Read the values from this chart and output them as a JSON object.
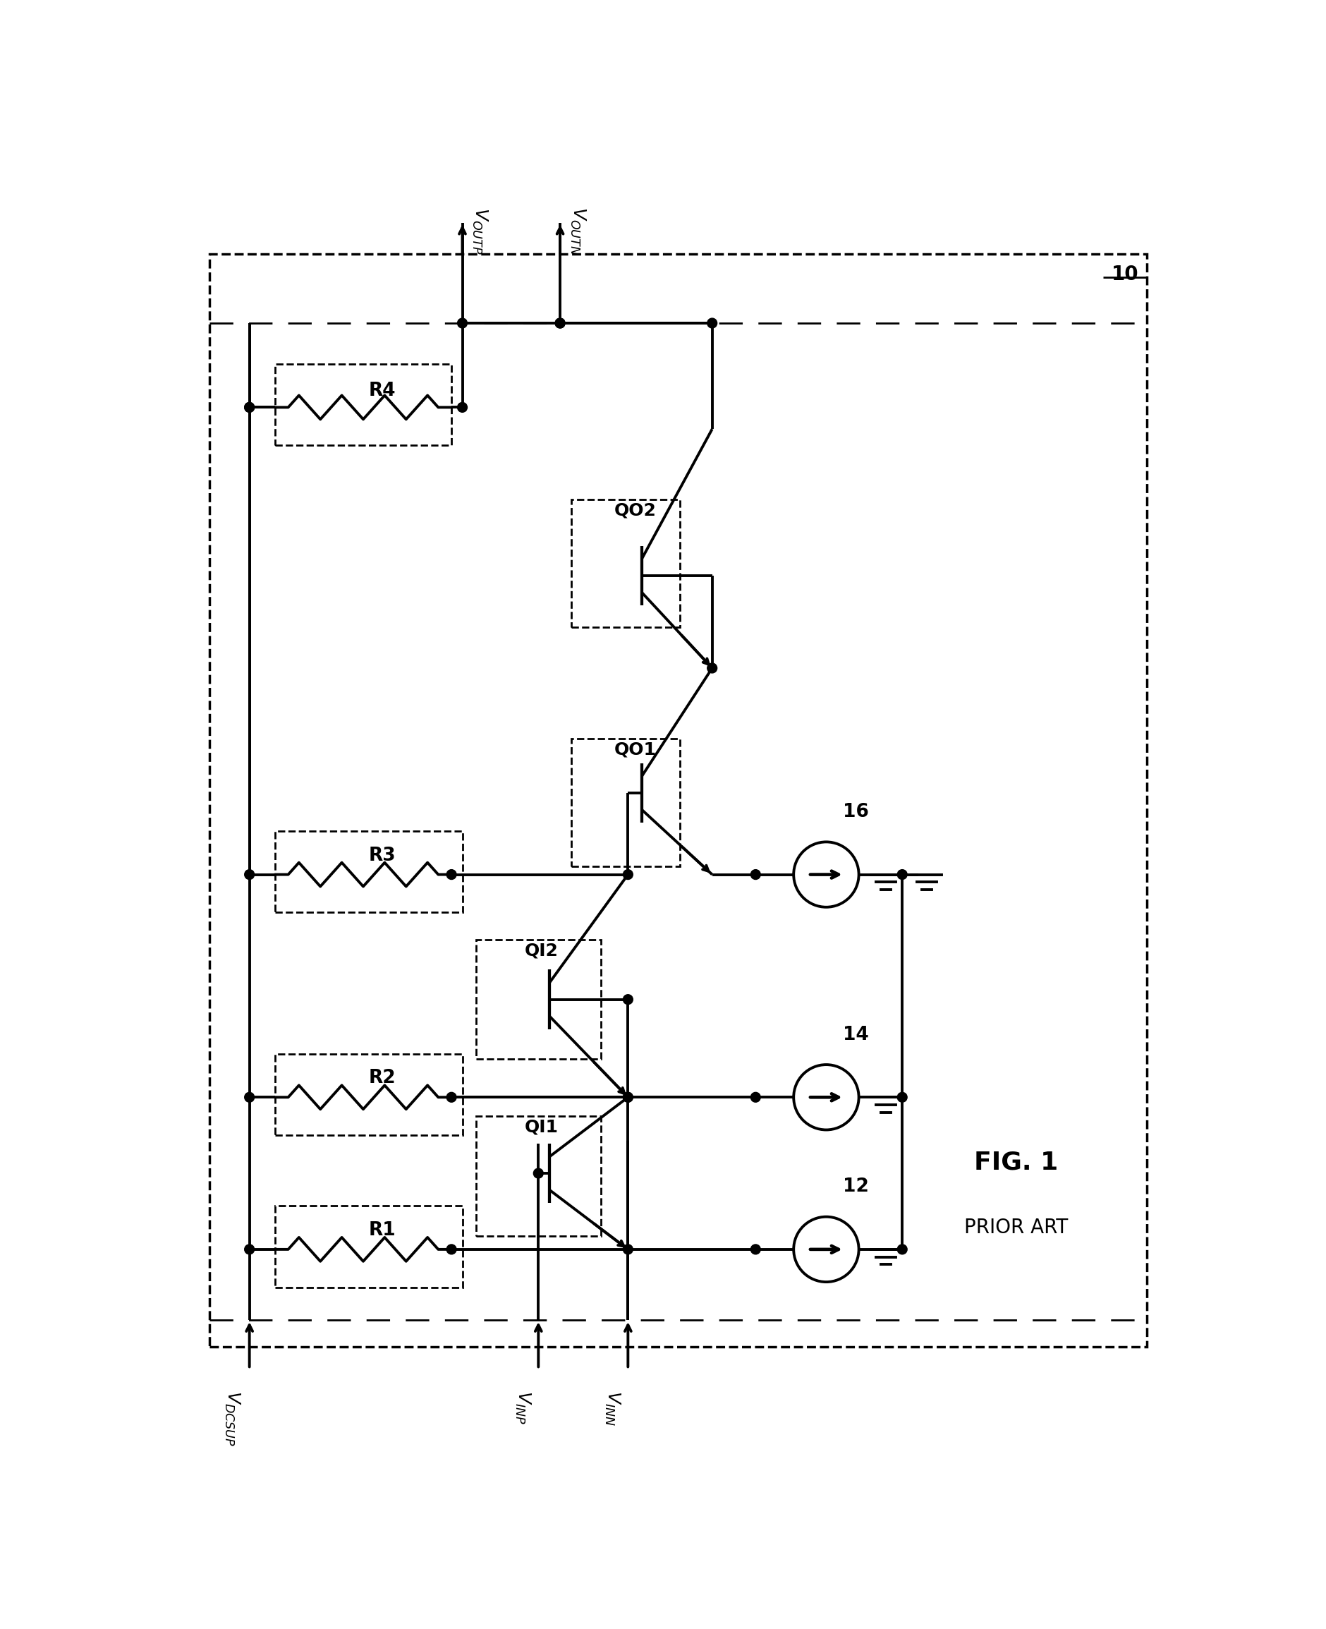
{
  "fig_label": "FIG. 1",
  "prior_art": "PRIOR ART",
  "circuit_num": "10",
  "cs12": "12",
  "cs14": "14",
  "cs16": "16",
  "R1": "R1",
  "R2": "R2",
  "R3": "R3",
  "R4": "R4",
  "QI1": "QI1",
  "QI2": "QI2",
  "QO1": "QO1",
  "QO2": "QO2",
  "VDCSUP": "V_DCSUP",
  "VINP": "V_INP",
  "VINN": "V_INN",
  "VOUTP": "V_OUTP",
  "VOUTN": "V_OUTN",
  "lw": 2.8,
  "dlw": 2.0,
  "fig_w": 18.8,
  "fig_h": 23.09
}
